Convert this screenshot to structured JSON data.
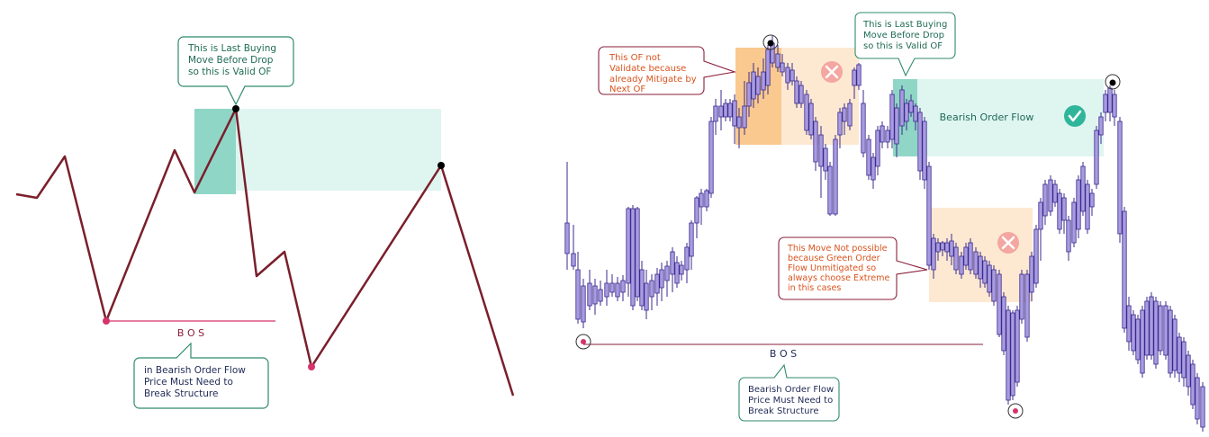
{
  "left_panel": {
    "callout_top": [
      "This is Last Buying",
      "Move Before Drop",
      "so this is Valid OF"
    ],
    "bos_label": "B O S",
    "callout_bottom": [
      "in Bearish Order Flow",
      "Price Must Need to",
      "Break  Structure"
    ]
  },
  "right_panel": {
    "callout_invalid_of": [
      "This OF not",
      "Validate because",
      "already Mitigate by",
      "Next OF"
    ],
    "callout_top": [
      "This is Last Buying",
      "Move Before Drop",
      "so this is Valid OF"
    ],
    "zone_label": "Bearish Order Flow",
    "callout_not_possible": [
      "This Move Not possible",
      "because Green Order",
      "Flow Unmitigated so",
      "always choose Extreme",
      "in this cases"
    ],
    "bos_label": "B O S",
    "callout_bottom": [
      "Bearish Order Flow",
      "Price Must Need to",
      "Break  Structure"
    ]
  },
  "colors": {
    "line": "#7a1f2b",
    "pivot_dark": "#000000",
    "pivot_pink": "#d6336c",
    "teal_dark": "#8fd6c6",
    "teal_light": "#dff5f0",
    "orange_dark": "#f9c98f",
    "orange_light": "#fde9d2",
    "candle": "#9b8ad6",
    "candle_edge": "#3a2a8c",
    "green_text": "#1f6b55",
    "orange_text": "#d9541e",
    "maroon_text": "#8a1f3a",
    "navy_text": "#1f2a56"
  }
}
